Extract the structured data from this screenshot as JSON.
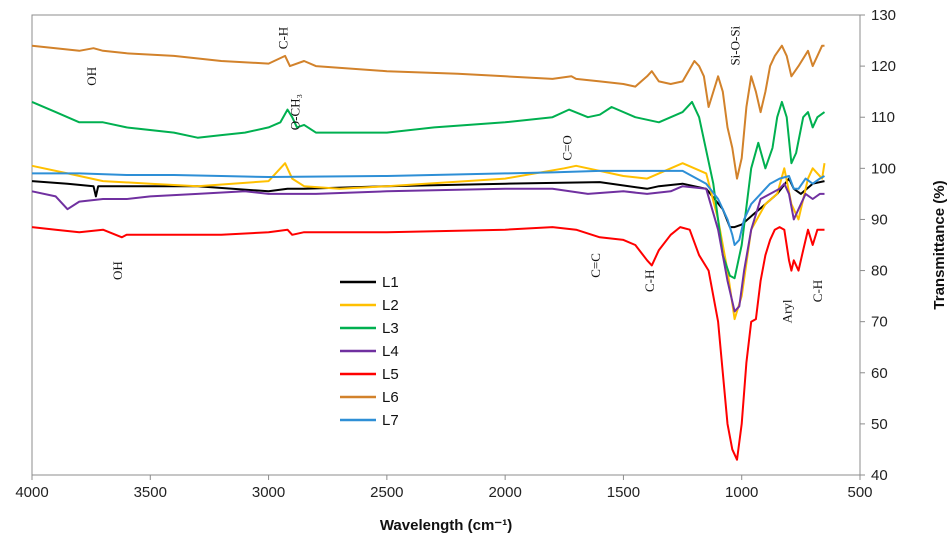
{
  "chart_data": {
    "type": "line",
    "title": "",
    "xlabel": "Wavelength (cm⁻¹)",
    "ylabel": "Transmittance (%)",
    "xlim": [
      4000,
      500
    ],
    "ylim": [
      40,
      130
    ],
    "x_ticks": [
      "4000",
      "3500",
      "3000",
      "2500",
      "2000",
      "1500",
      "1000",
      "500"
    ],
    "y_ticks": [
      "40",
      "50",
      "60",
      "70",
      "80",
      "90",
      "100",
      "110",
      "120",
      "130"
    ],
    "y_axis_side": "right",
    "grid": false,
    "legend": {
      "placement": "center-left",
      "entries": [
        "L1",
        "L2",
        "L3",
        "L4",
        "L5",
        "L6",
        "L7"
      ]
    },
    "annotations": [
      {
        "text": "C-H",
        "x": 2920,
        "y": 125.5
      },
      {
        "text": "OH",
        "x": 3730,
        "y": 118
      },
      {
        "text": "O-CH₃",
        "x": 2870,
        "y": 111
      },
      {
        "text": "C=O",
        "x": 1720,
        "y": 104
      },
      {
        "text": "Si-O-Si",
        "x": 1010,
        "y": 124
      },
      {
        "text": "OH",
        "x": 3620,
        "y": 80
      },
      {
        "text": "C=C",
        "x": 1600,
        "y": 81
      },
      {
        "text": "C-H",
        "x": 1370,
        "y": 78
      },
      {
        "text": "Aryl",
        "x": 790,
        "y": 72
      },
      {
        "text": "C-H",
        "x": 660,
        "y": 76
      }
    ],
    "series": [
      {
        "name": "L1",
        "color": "#000000",
        "points": [
          [
            4000,
            97.5
          ],
          [
            3850,
            97
          ],
          [
            3740,
            96.5
          ],
          [
            3730,
            94.5
          ],
          [
            3720,
            96.5
          ],
          [
            3600,
            96.5
          ],
          [
            3500,
            96.5
          ],
          [
            3300,
            96.5
          ],
          [
            3000,
            95.5
          ],
          [
            2920,
            96
          ],
          [
            2850,
            96
          ],
          [
            2500,
            96.5
          ],
          [
            2000,
            97
          ],
          [
            1600,
            97.3
          ],
          [
            1400,
            96
          ],
          [
            1350,
            96.5
          ],
          [
            1250,
            97
          ],
          [
            1150,
            96
          ],
          [
            1080,
            92
          ],
          [
            1050,
            88.5
          ],
          [
            1030,
            88.5
          ],
          [
            1000,
            89
          ],
          [
            950,
            91
          ],
          [
            900,
            93
          ],
          [
            850,
            95
          ],
          [
            800,
            98
          ],
          [
            780,
            96
          ],
          [
            750,
            95
          ],
          [
            700,
            97
          ],
          [
            650,
            97.5
          ]
        ]
      },
      {
        "name": "L2",
        "color": "#ffc000",
        "points": [
          [
            4000,
            100.5
          ],
          [
            3850,
            99
          ],
          [
            3700,
            97.5
          ],
          [
            3500,
            97
          ],
          [
            3300,
            96.5
          ],
          [
            3000,
            97.5
          ],
          [
            2930,
            101
          ],
          [
            2900,
            98
          ],
          [
            2850,
            96.5
          ],
          [
            2700,
            96
          ],
          [
            2500,
            96.5
          ],
          [
            2000,
            98
          ],
          [
            1750,
            100
          ],
          [
            1700,
            100.5
          ],
          [
            1500,
            98.5
          ],
          [
            1400,
            98
          ],
          [
            1250,
            101
          ],
          [
            1150,
            99
          ],
          [
            1100,
            90
          ],
          [
            1060,
            80
          ],
          [
            1030,
            70.5
          ],
          [
            1000,
            75
          ],
          [
            960,
            88
          ],
          [
            900,
            93
          ],
          [
            850,
            95
          ],
          [
            820,
            100
          ],
          [
            790,
            93
          ],
          [
            760,
            90
          ],
          [
            720,
            98
          ],
          [
            700,
            100
          ],
          [
            660,
            98
          ],
          [
            650,
            101
          ]
        ]
      },
      {
        "name": "L3",
        "color": "#00b050",
        "points": [
          [
            4000,
            113
          ],
          [
            3900,
            111
          ],
          [
            3800,
            109
          ],
          [
            3700,
            109
          ],
          [
            3600,
            108
          ],
          [
            3400,
            107
          ],
          [
            3300,
            106
          ],
          [
            3200,
            106.5
          ],
          [
            3100,
            107
          ],
          [
            3000,
            108
          ],
          [
            2950,
            109
          ],
          [
            2920,
            111.5
          ],
          [
            2900,
            110
          ],
          [
            2880,
            108
          ],
          [
            2850,
            108.5
          ],
          [
            2800,
            107
          ],
          [
            2500,
            107
          ],
          [
            2300,
            108
          ],
          [
            2000,
            109
          ],
          [
            1800,
            110
          ],
          [
            1730,
            111.5
          ],
          [
            1650,
            110
          ],
          [
            1600,
            110.5
          ],
          [
            1550,
            112
          ],
          [
            1450,
            110
          ],
          [
            1350,
            109
          ],
          [
            1250,
            111
          ],
          [
            1210,
            113
          ],
          [
            1180,
            110
          ],
          [
            1120,
            97
          ],
          [
            1080,
            83
          ],
          [
            1050,
            79
          ],
          [
            1030,
            78.5
          ],
          [
            1000,
            85
          ],
          [
            960,
            100
          ],
          [
            930,
            105
          ],
          [
            900,
            100
          ],
          [
            870,
            104
          ],
          [
            850,
            110
          ],
          [
            830,
            113
          ],
          [
            810,
            110
          ],
          [
            790,
            101
          ],
          [
            770,
            103
          ],
          [
            740,
            110
          ],
          [
            720,
            111
          ],
          [
            700,
            108
          ],
          [
            680,
            110
          ],
          [
            650,
            111
          ]
        ]
      },
      {
        "name": "L4",
        "color": "#7030a0",
        "points": [
          [
            4000,
            95.5
          ],
          [
            3900,
            94.5
          ],
          [
            3850,
            92
          ],
          [
            3800,
            93.5
          ],
          [
            3700,
            94
          ],
          [
            3600,
            94
          ],
          [
            3500,
            94.5
          ],
          [
            3300,
            95
          ],
          [
            3100,
            95.5
          ],
          [
            3000,
            95
          ],
          [
            2900,
            95
          ],
          [
            2800,
            95
          ],
          [
            2500,
            95.5
          ],
          [
            2000,
            96
          ],
          [
            1800,
            96
          ],
          [
            1650,
            95
          ],
          [
            1500,
            95.5
          ],
          [
            1400,
            95
          ],
          [
            1300,
            95.5
          ],
          [
            1250,
            96.5
          ],
          [
            1150,
            96
          ],
          [
            1100,
            88
          ],
          [
            1060,
            78
          ],
          [
            1030,
            72
          ],
          [
            1010,
            73
          ],
          [
            990,
            80
          ],
          [
            960,
            88
          ],
          [
            920,
            94
          ],
          [
            880,
            95
          ],
          [
            840,
            96
          ],
          [
            820,
            97
          ],
          [
            800,
            95
          ],
          [
            780,
            90
          ],
          [
            760,
            92
          ],
          [
            730,
            95
          ],
          [
            700,
            94
          ],
          [
            670,
            95
          ],
          [
            650,
            95
          ]
        ]
      },
      {
        "name": "L5",
        "color": "#ff0000",
        "points": [
          [
            4000,
            88.5
          ],
          [
            3900,
            88
          ],
          [
            3800,
            87.5
          ],
          [
            3700,
            88
          ],
          [
            3620,
            86.5
          ],
          [
            3600,
            87
          ],
          [
            3500,
            87
          ],
          [
            3400,
            87
          ],
          [
            3200,
            87
          ],
          [
            3000,
            87.5
          ],
          [
            2920,
            88
          ],
          [
            2900,
            87
          ],
          [
            2850,
            87.5
          ],
          [
            2500,
            87.5
          ],
          [
            2000,
            88
          ],
          [
            1800,
            88.5
          ],
          [
            1700,
            88
          ],
          [
            1600,
            86.5
          ],
          [
            1500,
            86
          ],
          [
            1450,
            85
          ],
          [
            1400,
            82
          ],
          [
            1380,
            81
          ],
          [
            1350,
            84
          ],
          [
            1300,
            87
          ],
          [
            1260,
            88.5
          ],
          [
            1220,
            88
          ],
          [
            1180,
            83
          ],
          [
            1140,
            80
          ],
          [
            1100,
            70
          ],
          [
            1080,
            60
          ],
          [
            1060,
            50
          ],
          [
            1040,
            45
          ],
          [
            1020,
            43
          ],
          [
            1000,
            50
          ],
          [
            980,
            62
          ],
          [
            960,
            70
          ],
          [
            940,
            70.5
          ],
          [
            920,
            78
          ],
          [
            900,
            83
          ],
          [
            880,
            86
          ],
          [
            860,
            88
          ],
          [
            840,
            88.5
          ],
          [
            820,
            88
          ],
          [
            800,
            82
          ],
          [
            790,
            80
          ],
          [
            780,
            82
          ],
          [
            760,
            80
          ],
          [
            740,
            84
          ],
          [
            720,
            88
          ],
          [
            700,
            85
          ],
          [
            680,
            88
          ],
          [
            650,
            88
          ]
        ]
      },
      {
        "name": "L6",
        "color": "#d2822b",
        "points": [
          [
            4000,
            124
          ],
          [
            3900,
            123.5
          ],
          [
            3800,
            123
          ],
          [
            3740,
            123.5
          ],
          [
            3700,
            123
          ],
          [
            3600,
            122.5
          ],
          [
            3400,
            122
          ],
          [
            3200,
            121
          ],
          [
            3000,
            120.5
          ],
          [
            2930,
            122
          ],
          [
            2910,
            120
          ],
          [
            2850,
            121
          ],
          [
            2800,
            120
          ],
          [
            2500,
            119
          ],
          [
            2200,
            118.5
          ],
          [
            2000,
            118
          ],
          [
            1800,
            117.5
          ],
          [
            1720,
            118
          ],
          [
            1700,
            117.5
          ],
          [
            1600,
            117
          ],
          [
            1500,
            116.5
          ],
          [
            1450,
            116
          ],
          [
            1400,
            118
          ],
          [
            1380,
            119
          ],
          [
            1350,
            117
          ],
          [
            1300,
            116.5
          ],
          [
            1250,
            117
          ],
          [
            1200,
            121
          ],
          [
            1180,
            120
          ],
          [
            1160,
            118
          ],
          [
            1140,
            112
          ],
          [
            1100,
            118
          ],
          [
            1080,
            115
          ],
          [
            1060,
            108
          ],
          [
            1040,
            104
          ],
          [
            1020,
            98
          ],
          [
            1000,
            102
          ],
          [
            980,
            112
          ],
          [
            960,
            118
          ],
          [
            940,
            115
          ],
          [
            920,
            111
          ],
          [
            900,
            115
          ],
          [
            880,
            120
          ],
          [
            860,
            122
          ],
          [
            830,
            124
          ],
          [
            810,
            122
          ],
          [
            790,
            118
          ],
          [
            760,
            120
          ],
          [
            720,
            123
          ],
          [
            700,
            120
          ],
          [
            680,
            122
          ],
          [
            660,
            124
          ],
          [
            650,
            124
          ]
        ]
      },
      {
        "name": "L7",
        "color": "#2e8fd6",
        "points": [
          [
            4000,
            99
          ],
          [
            3800,
            99
          ],
          [
            3600,
            98.7
          ],
          [
            3400,
            98.7
          ],
          [
            3200,
            98.5
          ],
          [
            3000,
            98.3
          ],
          [
            2500,
            98.5
          ],
          [
            2000,
            99
          ],
          [
            1800,
            99.2
          ],
          [
            1600,
            99.5
          ],
          [
            1400,
            99.5
          ],
          [
            1250,
            99.5
          ],
          [
            1150,
            97
          ],
          [
            1100,
            94
          ],
          [
            1060,
            90
          ],
          [
            1040,
            87
          ],
          [
            1030,
            85
          ],
          [
            1010,
            86
          ],
          [
            990,
            90
          ],
          [
            960,
            93
          ],
          [
            920,
            95
          ],
          [
            880,
            97
          ],
          [
            840,
            98
          ],
          [
            800,
            98.5
          ],
          [
            780,
            96
          ],
          [
            760,
            96
          ],
          [
            730,
            98
          ],
          [
            700,
            97
          ],
          [
            670,
            98
          ],
          [
            650,
            98.5
          ]
        ]
      }
    ]
  }
}
